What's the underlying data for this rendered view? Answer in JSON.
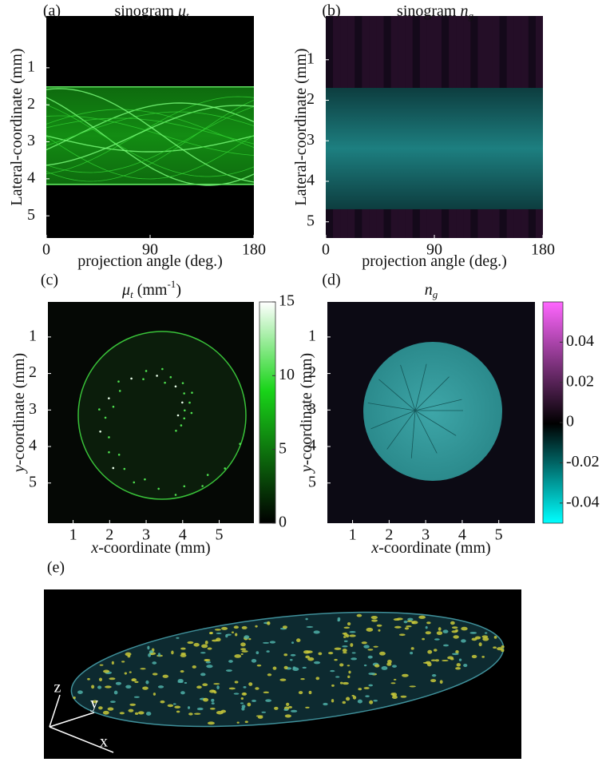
{
  "panels": [
    {
      "label": "(a)",
      "title": {
        "text": "sinogram ",
        "symbol": "μ",
        "subscript": "t"
      },
      "ylabel": "Lateral-coordinate (mm)",
      "xlabel": "projection angle (deg.)",
      "xlim": [
        0,
        180
      ],
      "xticks": [
        0,
        90,
        180
      ],
      "ylim": [
        -0.4,
        5.6
      ],
      "yticks": [
        1,
        2,
        3,
        4,
        5
      ]
    },
    {
      "label": "(b)",
      "title": {
        "text": "sinogram ",
        "symbol": "n",
        "subscript": "g"
      },
      "ylabel": "Lateral-coordinate (mm)",
      "xlabel": "projection angle (deg.)",
      "xlim": [
        0,
        180
      ],
      "xticks": [
        0,
        90,
        180
      ],
      "ylim": [
        -0.08,
        5.4
      ],
      "yticks": [
        1,
        2,
        3,
        4,
        5
      ]
    },
    {
      "label": "(c)",
      "title": {
        "symbol": "μ",
        "subscript": "t",
        "unit": " (mm",
        "superscript": "-1",
        "unit_end": ")"
      },
      "ylabel": {
        "var": "y",
        "text": "-coordinate (mm)"
      },
      "xlabel": {
        "var": "x",
        "text": "-coordinate (mm)"
      },
      "xlim": [
        0.31,
        5.95
      ],
      "xticks": [
        1,
        2,
        3,
        4,
        5
      ],
      "ylim": [
        0.04,
        6.1
      ],
      "yticks": [
        1,
        2,
        3,
        4,
        5
      ],
      "colorbar": {
        "clim": [
          0,
          15
        ],
        "ticks": [
          0,
          5,
          10,
          15
        ]
      }
    },
    {
      "label": "(d)",
      "title": {
        "symbol": "n",
        "subscript": "g"
      },
      "ylabel": {
        "var": "y",
        "text": "-coordinate (mm)"
      },
      "xlabel": {
        "var": "x",
        "text": "-coordinate (mm)"
      },
      "xlim": [
        0.31,
        5.99
      ],
      "xticks": [
        1,
        2,
        3,
        4,
        5
      ],
      "ylim": [
        0.04,
        6.1
      ],
      "yticks": [
        1,
        2,
        3,
        4,
        5
      ],
      "colorbar": {
        "clim": [
          -0.05,
          0.06
        ],
        "ticks": [
          0.04,
          0.02,
          0,
          -0.02,
          -0.04
        ]
      }
    },
    {
      "label": "(e)",
      "axes": [
        "z",
        "y",
        "x"
      ]
    }
  ]
}
